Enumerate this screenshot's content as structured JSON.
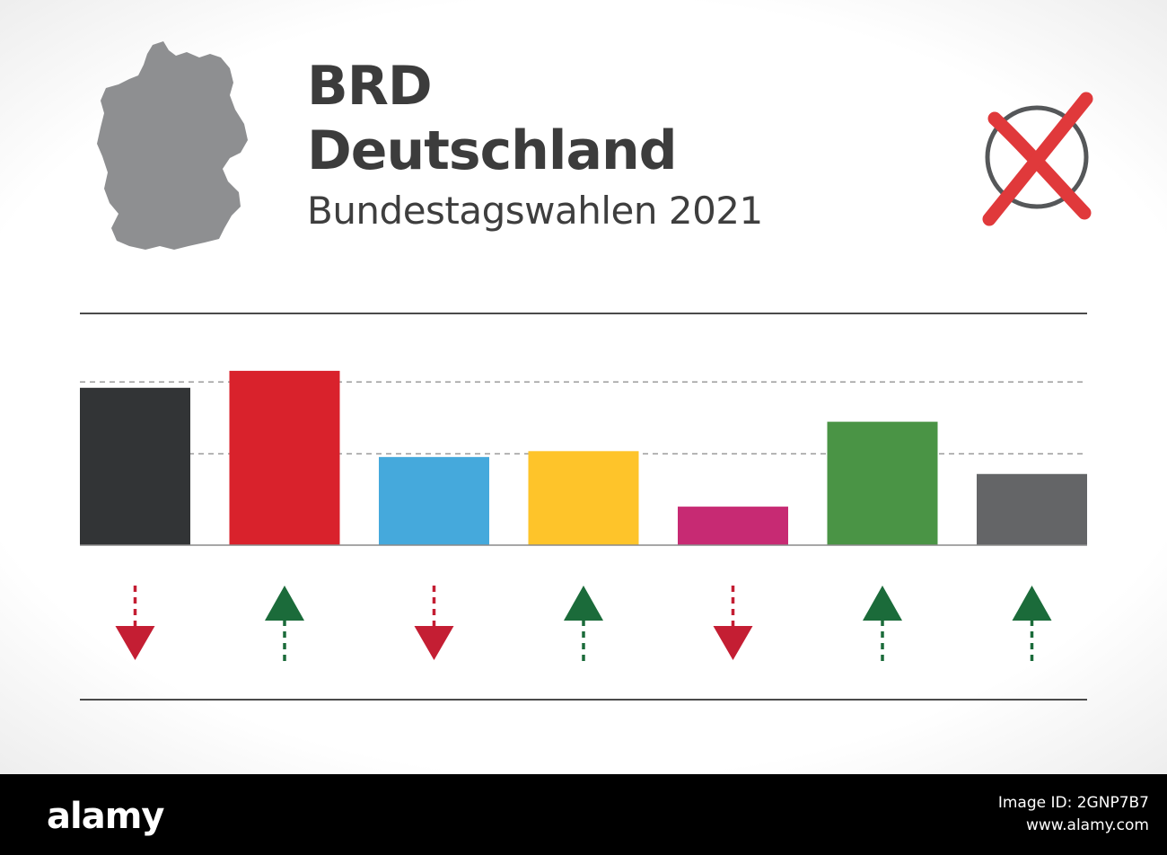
{
  "header": {
    "title_line1": "BRD",
    "title_line2": "Deutschland",
    "subtitle": "Bundestagswahlen 2021"
  },
  "icons": {
    "map": "germany-map-icon",
    "ballot": "ballot-cross-icon"
  },
  "colors": {
    "map": "#8e8f91",
    "ballot_circle": "#555759",
    "ballot_cross": "#e0393b",
    "arrow_up": "#1b6b3a",
    "arrow_down": "#c41e33"
  },
  "chart_data": {
    "type": "bar",
    "title": "",
    "xlabel": "",
    "ylabel": "",
    "ylim": [
      0,
      28
    ],
    "grid": true,
    "gridlines": [
      14,
      25
    ],
    "categories": [
      "",
      "",
      "",
      "",
      "",
      "",
      ""
    ],
    "values": [
      24.1,
      26.7,
      13.5,
      14.4,
      5.9,
      18.9,
      10.9
    ],
    "colors": [
      "#323436",
      "#d9222c",
      "#45a9dc",
      "#fec42a",
      "#c72a73",
      "#4a9445",
      "#646567"
    ],
    "trend": [
      "down",
      "up",
      "down",
      "up",
      "down",
      "up",
      "up"
    ]
  },
  "footer": {
    "brand": "alamy",
    "image_id_label": "Image ID: 2GNP7B7",
    "site": "www.alamy.com"
  }
}
